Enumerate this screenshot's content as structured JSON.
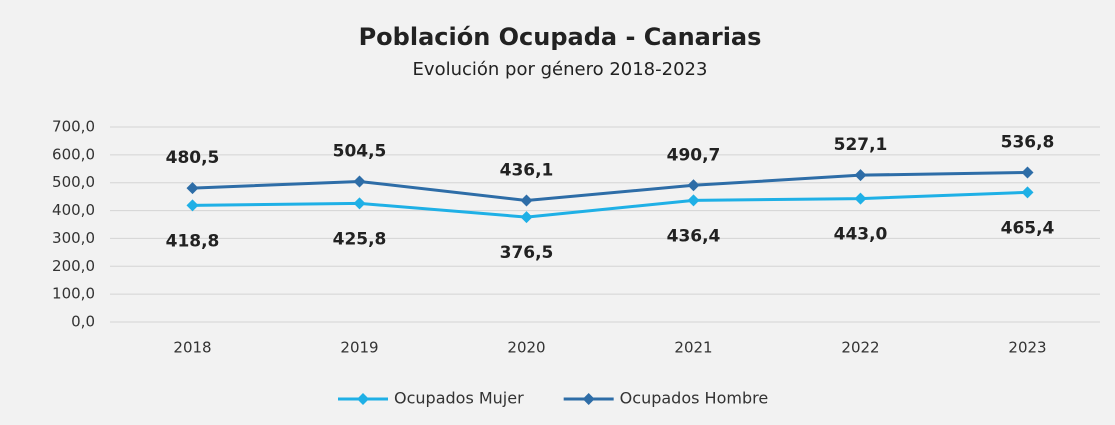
{
  "chart_data": {
    "type": "line",
    "title": "Población Ocupada - Canarias",
    "subtitle": "Evolución por género 2018-2023",
    "categories": [
      "2018",
      "2019",
      "2020",
      "2021",
      "2022",
      "2023"
    ],
    "series": [
      {
        "name": "Ocupados Mujer",
        "color": "#1fb0e6",
        "values": [
          418.8,
          425.8,
          376.5,
          436.4,
          443.0,
          465.4
        ],
        "value_labels": [
          "418,8",
          "425,8",
          "376,5",
          "436,4",
          "443,0",
          "465,4"
        ]
      },
      {
        "name": "Ocupados Hombre",
        "color": "#2e6da7",
        "values": [
          480.5,
          504.5,
          436.1,
          490.7,
          527.1,
          536.8
        ],
        "value_labels": [
          "480,5",
          "504,5",
          "436,1",
          "490,7",
          "527,1",
          "536,8"
        ]
      }
    ],
    "ylim": [
      0,
      700
    ],
    "yticks": [
      {
        "value": 0,
        "label": "0,0"
      },
      {
        "value": 100,
        "label": "100,0"
      },
      {
        "value": 200,
        "label": "200,0"
      },
      {
        "value": 300,
        "label": "300,0"
      },
      {
        "value": 400,
        "label": "400,0"
      },
      {
        "value": 500,
        "label": "500,0"
      },
      {
        "value": 600,
        "label": "600,0"
      },
      {
        "value": 700,
        "label": "700,0"
      }
    ],
    "grid": true,
    "legend": "bottom"
  }
}
